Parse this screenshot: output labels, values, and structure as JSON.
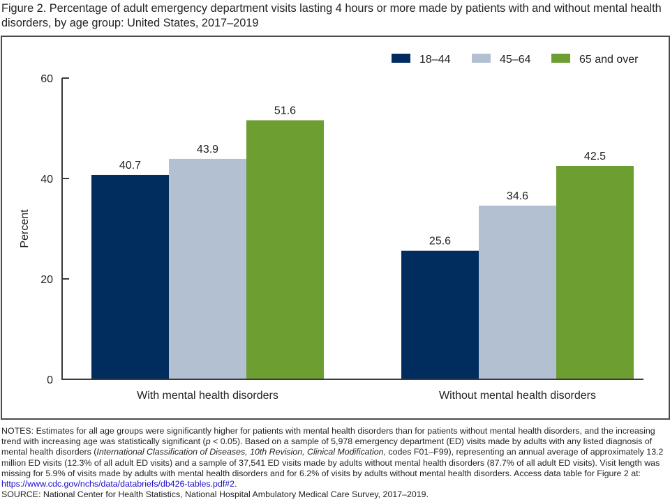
{
  "title": "Figure 2. Percentage of adult emergency department visits lasting 4 hours or more made by patients with and without mental health disorders, by age group: United States, 2017–2019",
  "notes": {
    "p1": "NOTES: Estimates for all age groups were significantly higher for patients with mental health disorders than for patients without mental health disorders, and the increasing trend with increasing age was statistically significant (",
    "p_italic": "p",
    "p2": " < 0.05). Based on a sample of 5,978 emergency department (ED) visits made by adults with any listed diagnosis of mental health disorders (",
    "icd_italic": "International Classification of Diseases, 10th Revision, Clinical Modification,",
    "p3": " codes F01–F99), representing an annual average of approximately 13.2 million ED visits (12.3% of all adult ED visits) and a sample of 37,541 ED visits made by adults without mental health disorders (87.7% of all adult ED visits). Visit length was missing for 5.9% of visits made by adults with mental health disorders and for 6.2% of visits by adults without mental health disorders. Access data table for Figure 2 at: ",
    "link": "https://www.cdc.gov/nchs/data/databriefs/db426-tables.pdf#2",
    "p4": "."
  },
  "source": "SOURCE: National Center for Health Statistics, National Hospital Ambulatory Medical Care Survey, 2017–2019.",
  "chart_data": {
    "type": "bar",
    "title": "Percentage of adult emergency department visits lasting 4 hours or more made by patients with and without mental health disorders, by age group: United States, 2017–2019",
    "xlabel": "",
    "ylabel": "Percent",
    "ylim": [
      0,
      60
    ],
    "yticks": [
      0,
      20,
      40,
      60
    ],
    "grid": false,
    "legend_position": "top-right",
    "categories": [
      "With mental health disorders",
      "Without mental health disorders"
    ],
    "series": [
      {
        "name": "18–44",
        "color": "#002c5e",
        "values": [
          40.7,
          25.6
        ],
        "labels": [
          "40.7",
          "25.6"
        ]
      },
      {
        "name": "45–64",
        "color": "#b2c0d1",
        "values": [
          43.9,
          34.6
        ],
        "labels": [
          "43.9",
          "34.6"
        ]
      },
      {
        "name": "65 and over",
        "color": "#6d9e31",
        "values": [
          51.6,
          42.5
        ],
        "labels": [
          "51.6",
          "42.5"
        ]
      }
    ]
  }
}
